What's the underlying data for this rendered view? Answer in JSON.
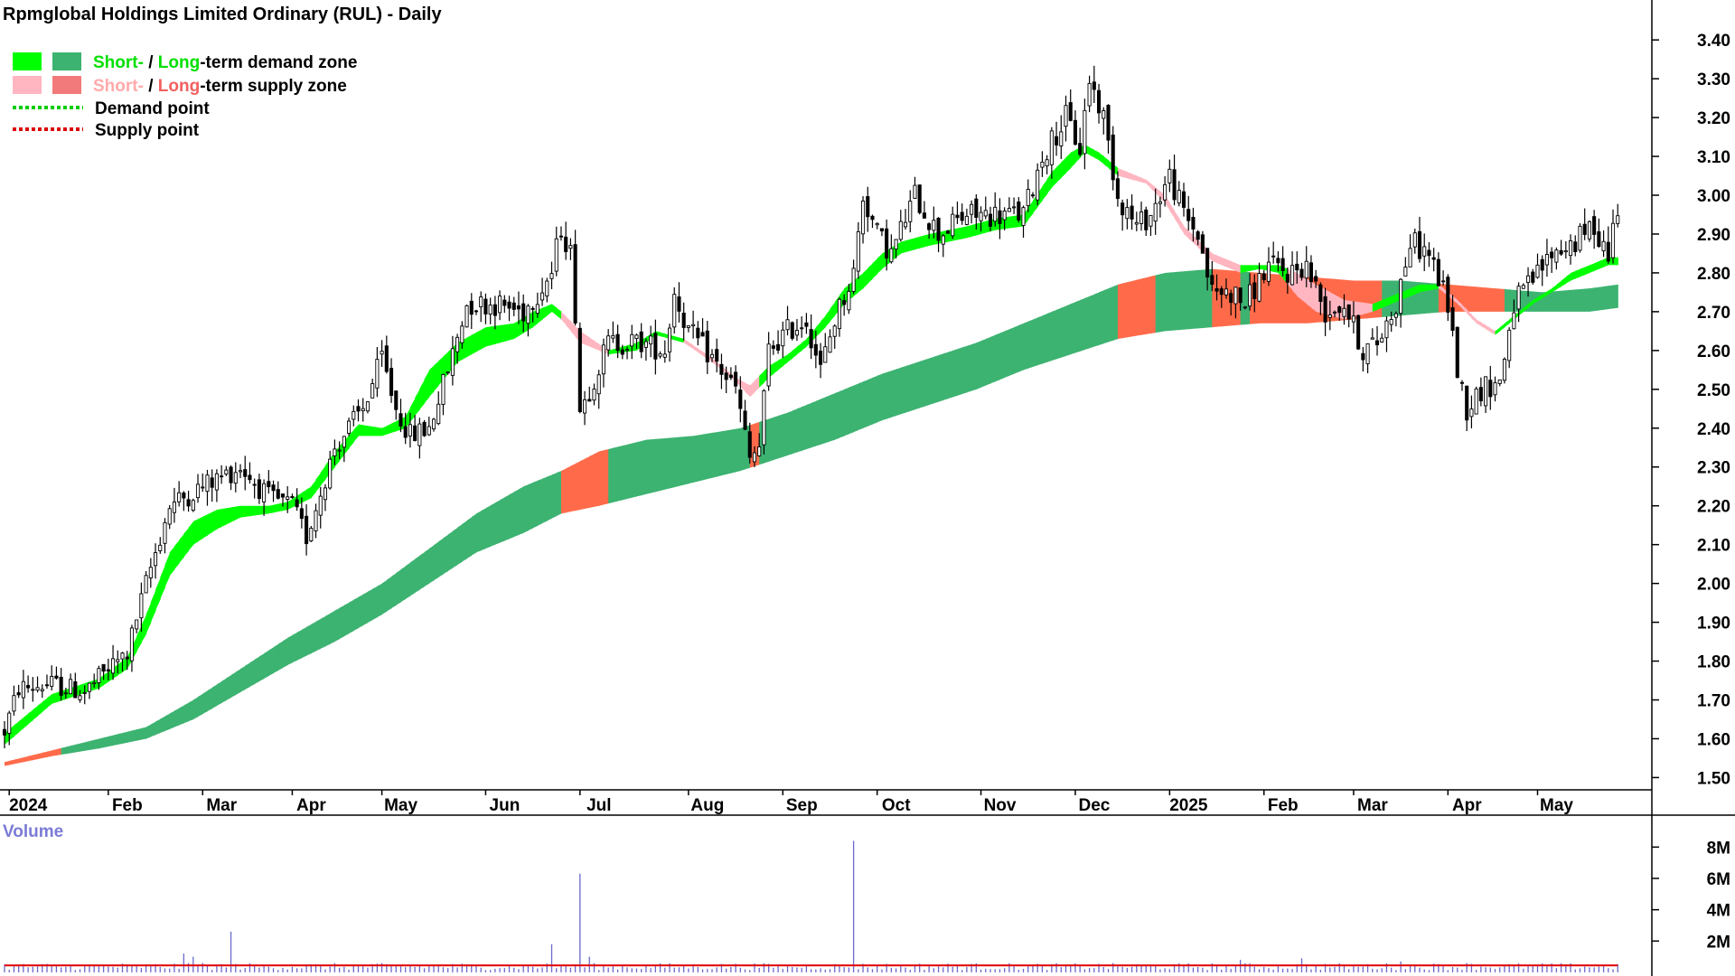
{
  "chart_data": {
    "type": "candlestick",
    "title": "Rpmglobal Holdings Limited Ordinary (RUL) - Daily",
    "legend": {
      "placement": "top-left",
      "demand_short": "Short-",
      "demand_sep": " / ",
      "demand_long": "Long",
      "demand_rest": "-term demand zone",
      "supply_short": "Short-",
      "supply_sep": " / ",
      "supply_long": "Long",
      "supply_rest": "-term supply zone",
      "demand_point": "Demand point",
      "supply_point": "Supply point"
    },
    "colors": {
      "short_demand": "#00ff00",
      "long_demand": "#3cb371",
      "short_supply": "#ffb6c1",
      "long_supply": "#ff6b4a",
      "candle": "#000000",
      "volume_bar": "#6a6acd",
      "volume_avg": "#e00000",
      "demand_point": "#00cc00",
      "supply_point": "#dd0000"
    },
    "price_axis": {
      "ticks": [
        "1.50",
        "1.60",
        "1.70",
        "1.80",
        "1.90",
        "2.00",
        "2.10",
        "2.20",
        "2.30",
        "2.40",
        "2.50",
        "2.60",
        "2.70",
        "2.80",
        "2.90",
        "3.00",
        "3.10",
        "3.20",
        "3.30",
        "3.40"
      ],
      "ylim": [
        1.48,
        3.44
      ]
    },
    "month_labels": [
      "2024",
      "Feb",
      "Mar",
      "Apr",
      "May",
      "Jun",
      "Jul",
      "Aug",
      "Sep",
      "Oct",
      "Nov",
      "Dec",
      "2025",
      "Feb",
      "Mar",
      "Apr",
      "May"
    ],
    "month_x": [
      1,
      22,
      42,
      61,
      80,
      102,
      122,
      145,
      165,
      185,
      207,
      227,
      247,
      267,
      286,
      306,
      325
    ],
    "volume": {
      "label": "Volume",
      "ticks": [
        "2M",
        "4M",
        "6M",
        "8M"
      ],
      "ylim": [
        0,
        9
      ]
    },
    "price_anchors": [
      [
        0,
        1.62
      ],
      [
        3,
        1.73
      ],
      [
        10,
        1.74
      ],
      [
        17,
        1.72
      ],
      [
        22,
        1.78
      ],
      [
        26,
        1.82
      ],
      [
        30,
        2.0
      ],
      [
        35,
        2.2
      ],
      [
        42,
        2.25
      ],
      [
        50,
        2.3
      ],
      [
        56,
        2.22
      ],
      [
        61,
        2.2
      ],
      [
        64,
        2.12
      ],
      [
        70,
        2.35
      ],
      [
        76,
        2.45
      ],
      [
        80,
        2.58
      ],
      [
        83,
        2.45
      ],
      [
        86,
        2.38
      ],
      [
        90,
        2.4
      ],
      [
        94,
        2.55
      ],
      [
        98,
        2.72
      ],
      [
        104,
        2.72
      ],
      [
        110,
        2.7
      ],
      [
        116,
        2.8
      ],
      [
        118,
        2.92
      ],
      [
        120,
        2.85
      ],
      [
        121,
        2.7
      ],
      [
        122,
        2.45
      ],
      [
        124,
        2.5
      ],
      [
        128,
        2.62
      ],
      [
        135,
        2.62
      ],
      [
        140,
        2.6
      ],
      [
        142,
        2.75
      ],
      [
        145,
        2.65
      ],
      [
        150,
        2.58
      ],
      [
        155,
        2.5
      ],
      [
        158,
        2.32
      ],
      [
        160,
        2.35
      ],
      [
        162,
        2.6
      ],
      [
        166,
        2.65
      ],
      [
        170,
        2.68
      ],
      [
        173,
        2.55
      ],
      [
        176,
        2.68
      ],
      [
        180,
        2.8
      ],
      [
        182,
        3.0
      ],
      [
        185,
        2.9
      ],
      [
        188,
        2.85
      ],
      [
        193,
        3.0
      ],
      [
        198,
        2.9
      ],
      [
        204,
        2.95
      ],
      [
        210,
        2.95
      ],
      [
        216,
        2.95
      ],
      [
        220,
        3.1
      ],
      [
        225,
        3.2
      ],
      [
        228,
        3.12
      ],
      [
        230,
        3.3
      ],
      [
        233,
        3.2
      ],
      [
        236,
        3.0
      ],
      [
        240,
        2.92
      ],
      [
        243,
        2.95
      ],
      [
        247,
        3.05
      ],
      [
        250,
        2.95
      ],
      [
        253,
        2.9
      ],
      [
        256,
        2.75
      ],
      [
        260,
        2.75
      ],
      [
        263,
        2.72
      ],
      [
        266,
        2.78
      ],
      [
        268,
        2.82
      ],
      [
        272,
        2.8
      ],
      [
        276,
        2.82
      ],
      [
        280,
        2.7
      ],
      [
        284,
        2.72
      ],
      [
        288,
        2.6
      ],
      [
        291,
        2.62
      ],
      [
        295,
        2.72
      ],
      [
        298,
        2.88
      ],
      [
        302,
        2.85
      ],
      [
        306,
        2.72
      ],
      [
        308,
        2.55
      ],
      [
        310,
        2.45
      ],
      [
        313,
        2.5
      ],
      [
        317,
        2.52
      ],
      [
        320,
        2.72
      ],
      [
        324,
        2.78
      ],
      [
        328,
        2.85
      ],
      [
        333,
        2.88
      ],
      [
        337,
        2.92
      ],
      [
        340,
        2.85
      ],
      [
        342,
        2.98
      ]
    ],
    "short_zone": [
      [
        0,
        1.585,
        1.615
      ],
      [
        10,
        1.69,
        1.715
      ],
      [
        20,
        1.73,
        1.755
      ],
      [
        26,
        1.78,
        1.81
      ],
      [
        30,
        1.87,
        1.92
      ],
      [
        35,
        2.02,
        2.08
      ],
      [
        40,
        2.1,
        2.16
      ],
      [
        45,
        2.14,
        2.19
      ],
      [
        50,
        2.17,
        2.2
      ],
      [
        56,
        2.18,
        2.2
      ],
      [
        60,
        2.19,
        2.21
      ],
      [
        65,
        2.22,
        2.25
      ],
      [
        70,
        2.3,
        2.34
      ],
      [
        75,
        2.38,
        2.41
      ],
      [
        80,
        2.38,
        2.4
      ],
      [
        85,
        2.4,
        2.43
      ],
      [
        90,
        2.48,
        2.55
      ],
      [
        96,
        2.57,
        2.62
      ],
      [
        102,
        2.61,
        2.66
      ],
      [
        108,
        2.63,
        2.67
      ],
      [
        112,
        2.66,
        2.7
      ],
      [
        116,
        2.7,
        2.72
      ],
      [
        118,
        2.68,
        2.7
      ],
      [
        122,
        2.62,
        2.65
      ],
      [
        128,
        2.59,
        2.6
      ],
      [
        134,
        2.6,
        2.62
      ],
      [
        138,
        2.64,
        2.65
      ],
      [
        144,
        2.62,
        2.63
      ],
      [
        150,
        2.57,
        2.58
      ],
      [
        155,
        2.52,
        2.53
      ],
      [
        158,
        2.48,
        2.51
      ],
      [
        162,
        2.53,
        2.56
      ],
      [
        166,
        2.57,
        2.59
      ],
      [
        170,
        2.61,
        2.63
      ],
      [
        174,
        2.66,
        2.69
      ],
      [
        178,
        2.72,
        2.76
      ],
      [
        182,
        2.76,
        2.8
      ],
      [
        186,
        2.81,
        2.85
      ],
      [
        190,
        2.85,
        2.88
      ],
      [
        196,
        2.87,
        2.9
      ],
      [
        204,
        2.89,
        2.92
      ],
      [
        210,
        2.91,
        2.94
      ],
      [
        216,
        2.92,
        2.95
      ],
      [
        222,
        3.02,
        3.06
      ],
      [
        226,
        3.07,
        3.11
      ],
      [
        229,
        3.11,
        3.13
      ],
      [
        232,
        3.09,
        3.11
      ],
      [
        236,
        3.05,
        3.07
      ],
      [
        242,
        3.03,
        3.04
      ],
      [
        246,
        2.98,
        3.0
      ],
      [
        250,
        2.9,
        2.92
      ],
      [
        256,
        2.83,
        2.85
      ],
      [
        262,
        2.8,
        2.82
      ],
      [
        266,
        2.81,
        2.82
      ],
      [
        270,
        2.8,
        2.82
      ],
      [
        274,
        2.74,
        2.8
      ],
      [
        278,
        2.7,
        2.77
      ],
      [
        284,
        2.68,
        2.73
      ],
      [
        290,
        2.7,
        2.72
      ],
      [
        294,
        2.72,
        2.74
      ],
      [
        300,
        2.75,
        2.77
      ],
      [
        304,
        2.76,
        2.77
      ],
      [
        308,
        2.72,
        2.73
      ],
      [
        312,
        2.67,
        2.68
      ],
      [
        316,
        2.64,
        2.65
      ],
      [
        320,
        2.68,
        2.69
      ],
      [
        324,
        2.72,
        2.73
      ],
      [
        328,
        2.75,
        2.76
      ],
      [
        332,
        2.78,
        2.8
      ],
      [
        336,
        2.8,
        2.82
      ],
      [
        340,
        2.82,
        2.84
      ]
    ],
    "long_zone": [
      [
        0,
        1.53,
        1.54
      ],
      [
        10,
        1.555,
        1.57
      ],
      [
        20,
        1.575,
        1.6
      ],
      [
        30,
        1.6,
        1.63
      ],
      [
        40,
        1.65,
        1.7
      ],
      [
        50,
        1.72,
        1.78
      ],
      [
        60,
        1.79,
        1.86
      ],
      [
        70,
        1.85,
        1.93
      ],
      [
        80,
        1.92,
        2.0
      ],
      [
        90,
        2.0,
        2.09
      ],
      [
        100,
        2.08,
        2.18
      ],
      [
        110,
        2.13,
        2.25
      ],
      [
        118,
        2.18,
        2.29
      ],
      [
        126,
        2.2,
        2.34
      ],
      [
        136,
        2.23,
        2.37
      ],
      [
        146,
        2.26,
        2.38
      ],
      [
        156,
        2.29,
        2.4
      ],
      [
        166,
        2.33,
        2.44
      ],
      [
        176,
        2.37,
        2.49
      ],
      [
        186,
        2.42,
        2.54
      ],
      [
        196,
        2.46,
        2.58
      ],
      [
        206,
        2.5,
        2.62
      ],
      [
        216,
        2.55,
        2.67
      ],
      [
        226,
        2.59,
        2.72
      ],
      [
        236,
        2.63,
        2.77
      ],
      [
        246,
        2.65,
        2.8
      ],
      [
        256,
        2.66,
        2.81
      ],
      [
        266,
        2.67,
        2.8
      ],
      [
        276,
        2.67,
        2.79
      ],
      [
        286,
        2.68,
        2.78
      ],
      [
        296,
        2.69,
        2.78
      ],
      [
        306,
        2.7,
        2.77
      ],
      [
        316,
        2.7,
        2.76
      ],
      [
        326,
        2.7,
        2.75
      ],
      [
        336,
        2.7,
        2.76
      ],
      [
        342,
        2.71,
        2.77
      ]
    ],
    "short_supply_ranges": [
      [
        118,
        128
      ],
      [
        144,
        160
      ],
      [
        236,
        246
      ],
      [
        246,
        262
      ],
      [
        272,
        290
      ],
      [
        304,
        316
      ]
    ],
    "long_supply_ranges": [
      [
        0,
        12
      ],
      [
        118,
        128
      ],
      [
        158,
        160
      ],
      [
        236,
        244
      ],
      [
        256,
        262
      ],
      [
        264,
        292
      ],
      [
        304,
        318
      ]
    ],
    "volume_spikes": [
      [
        38,
        1.2
      ],
      [
        40,
        1.0
      ],
      [
        42,
        0.6
      ],
      [
        48,
        2.6
      ],
      [
        116,
        1.8
      ],
      [
        122,
        6.3
      ],
      [
        124,
        1.0
      ],
      [
        180,
        8.4
      ],
      [
        262,
        0.8
      ],
      [
        275,
        0.9
      ],
      [
        296,
        0.7
      ],
      [
        310,
        0.6
      ]
    ],
    "volume_avg": 0.45
  }
}
